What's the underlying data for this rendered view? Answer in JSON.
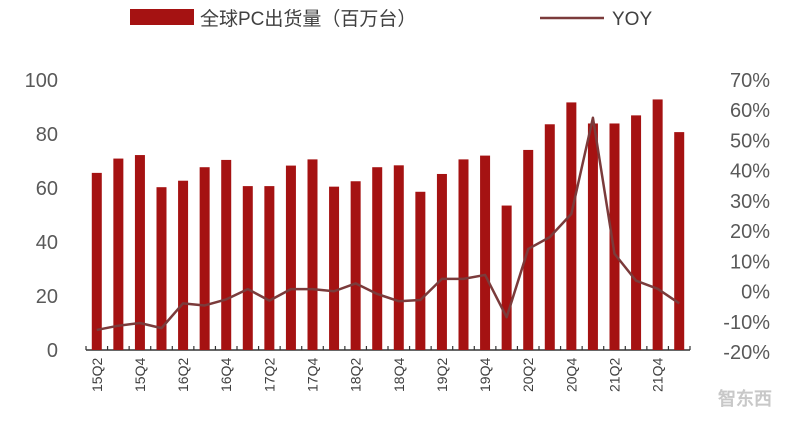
{
  "chart_data": {
    "type": "bar",
    "categories": [
      "15Q2",
      "15Q3",
      "15Q4",
      "16Q1",
      "16Q2",
      "16Q3",
      "16Q4",
      "17Q1",
      "17Q2",
      "17Q3",
      "17Q4",
      "18Q1",
      "18Q2",
      "18Q3",
      "18Q4",
      "19Q1",
      "19Q2",
      "19Q3",
      "19Q4",
      "20Q1",
      "20Q2",
      "20Q3",
      "20Q4",
      "21Q1",
      "21Q2",
      "21Q3",
      "21Q4",
      "22Q1"
    ],
    "tick_labels": [
      "15Q2",
      "15Q4",
      "16Q2",
      "16Q4",
      "17Q2",
      "17Q4",
      "18Q2",
      "18Q4",
      "19Q2",
      "19Q4",
      "20Q2",
      "20Q4",
      "21Q2",
      "21Q4"
    ],
    "series": [
      {
        "name": "全球PC出货量（百万台）",
        "type": "bar",
        "axis": "left",
        "color": "#a51212",
        "values": [
          65.6,
          70.9,
          72.2,
          60.3,
          62.7,
          67.7,
          70.4,
          60.7,
          60.7,
          68.3,
          70.6,
          60.5,
          62.5,
          67.7,
          68.4,
          58.6,
          65.2,
          70.6,
          72.0,
          53.5,
          74.1,
          83.6,
          91.7,
          83.9,
          83.9,
          86.9,
          92.8,
          80.7
        ]
      },
      {
        "name": "YOY",
        "type": "line",
        "axis": "right",
        "color": "#7b3b3b",
        "values": [
          -12.7,
          -11.3,
          -10.4,
          -12.1,
          -3.9,
          -4.6,
          -2.6,
          0.8,
          -3.0,
          0.8,
          0.8,
          0.1,
          2.7,
          -0.8,
          -3.2,
          -2.8,
          4.2,
          4.2,
          5.5,
          -8.5,
          14.1,
          18.0,
          25.7,
          57.5,
          12.5,
          3.6,
          0.9,
          -3.9
        ]
      }
    ],
    "left_axis": {
      "ylim": [
        0,
        100
      ],
      "ticks": [
        "0",
        "20",
        "40",
        "60",
        "80",
        "100"
      ]
    },
    "right_axis": {
      "ylim": [
        -20,
        70
      ],
      "ticks": [
        "-20%",
        "-10%",
        "0%",
        "10%",
        "20%",
        "30%",
        "40%",
        "50%",
        "60%",
        "70%"
      ]
    },
    "grid": false,
    "legend_placement": "top"
  },
  "watermark": "智东西"
}
